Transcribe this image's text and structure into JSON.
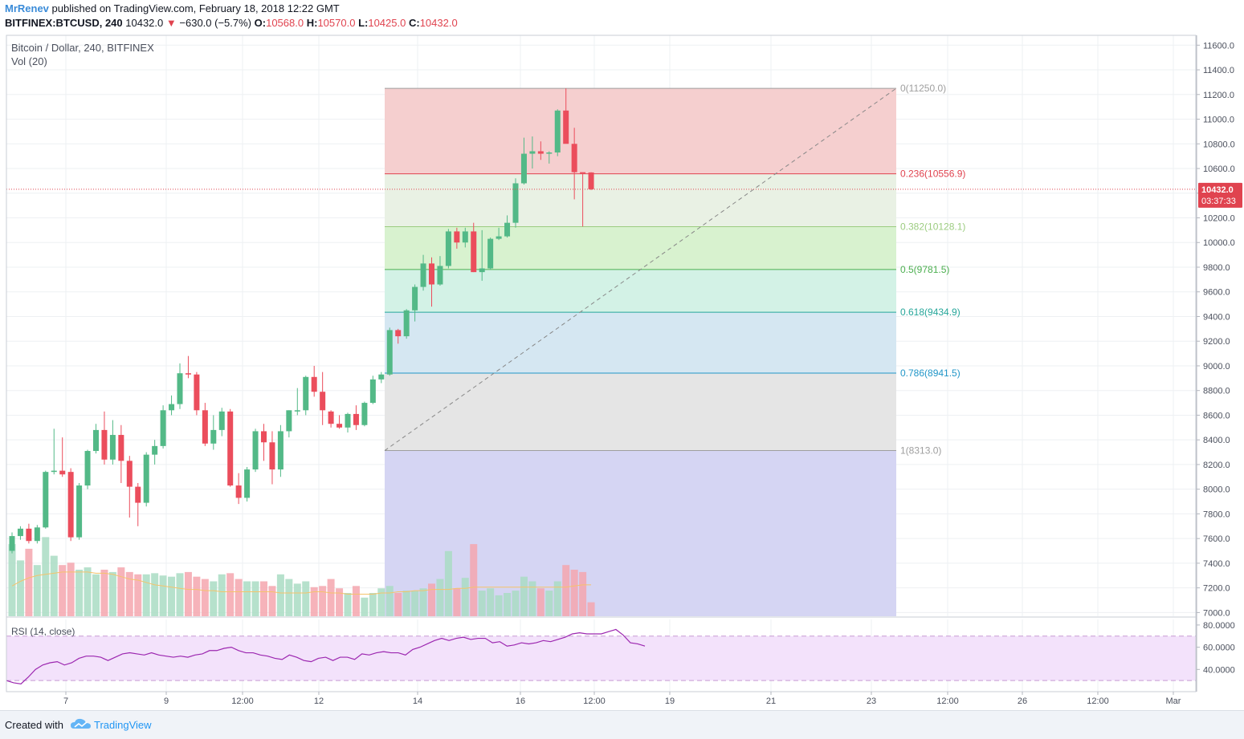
{
  "header": {
    "username": "MrRenev",
    "published_text": "published on TradingView.com, February 18, 2018 12:22 GMT",
    "symbol": "BITFINEX:BTCUSD, 240",
    "last": "10432.0",
    "change": "−630.0 (−5.7%)",
    "o_label": "O:",
    "o": "10568.0",
    "h_label": "H:",
    "h": "10570.0",
    "l_label": "L:",
    "l": "10425.0",
    "c_label": "C:",
    "c": "10432.0"
  },
  "pane_labels": {
    "main": "Bitcoin / Dollar, 240, BITFINEX",
    "volume": "Vol (20)",
    "rsi": "RSI (14, close)"
  },
  "footer": {
    "created_with": "Created with",
    "brand": "TradingView"
  },
  "colors": {
    "up": "#53b987",
    "down": "#eb4d5c",
    "vol_up": "#a9dcc3",
    "vol_down": "#f5a6ae",
    "ma": "#f5c36b",
    "rsi_line": "#9c27b0",
    "rsi_band": "#f3e2fb"
  },
  "chart_data": [
    {
      "type": "candlestick",
      "title": "Bitcoin / Dollar, 240, BITFINEX",
      "y_ticks": [
        7000.0,
        7200.0,
        7400.0,
        7600.0,
        7800.0,
        8000.0,
        8200.0,
        8400.0,
        8600.0,
        8800.0,
        9000.0,
        9200.0,
        9400.0,
        9600.0,
        9800.0,
        10000.0,
        10200.0,
        10400.0,
        10600.0,
        10800.0,
        11000.0,
        11200.0,
        11400.0,
        11600.0
      ],
      "ylim": [
        6970,
        11680
      ],
      "x_tick_labels": [
        "7",
        "9",
        "12:00",
        "12",
        "14",
        "16",
        "12:00",
        "19",
        "21",
        "23",
        "12:00",
        "26",
        "12:00",
        "Mar"
      ],
      "last_price": "10432.0",
      "countdown": "03:37:33",
      "candles": [
        [
          7500,
          7650,
          7480,
          7620
        ],
        [
          7620,
          7700,
          7590,
          7680
        ],
        [
          7680,
          7720,
          7560,
          7580
        ],
        [
          7580,
          7710,
          7560,
          7690
        ],
        [
          7690,
          8150,
          7680,
          8140
        ],
        [
          8140,
          8490,
          8120,
          8150
        ],
        [
          8150,
          8420,
          8100,
          8120
        ],
        [
          8140,
          8170,
          7580,
          7610
        ],
        [
          7610,
          8050,
          7590,
          8030
        ],
        [
          8030,
          8320,
          8000,
          8310
        ],
        [
          8310,
          8530,
          8290,
          8480
        ],
        [
          8480,
          8630,
          8200,
          8240
        ],
        [
          8240,
          8560,
          8200,
          8440
        ],
        [
          8440,
          8520,
          8050,
          8230
        ],
        [
          8230,
          8270,
          7770,
          8020
        ],
        [
          8020,
          8050,
          7700,
          7890
        ],
        [
          7890,
          8300,
          7860,
          8280
        ],
        [
          8280,
          8400,
          8200,
          8350
        ],
        [
          8350,
          8680,
          8330,
          8640
        ],
        [
          8640,
          8760,
          8600,
          8690
        ],
        [
          8690,
          9020,
          8650,
          8940
        ],
        [
          8940,
          9080,
          8900,
          8930
        ],
        [
          8930,
          8950,
          8600,
          8640
        ],
        [
          8640,
          8700,
          8350,
          8370
        ],
        [
          8370,
          8600,
          8320,
          8480
        ],
        [
          8480,
          8660,
          8430,
          8630
        ],
        [
          8630,
          8650,
          8020,
          8030
        ],
        [
          8030,
          8130,
          7880,
          7930
        ],
        [
          7930,
          8180,
          7900,
          8160
        ],
        [
          8160,
          8490,
          8140,
          8470
        ],
        [
          8470,
          8530,
          8230,
          8380
        ],
        [
          8380,
          8470,
          8040,
          8160
        ],
        [
          8160,
          8520,
          8100,
          8470
        ],
        [
          8470,
          8640,
          8420,
          8640
        ],
        [
          8640,
          8820,
          8600,
          8640
        ],
        [
          8640,
          8920,
          8600,
          8910
        ],
        [
          8910,
          9000,
          8750,
          8790
        ],
        [
          8790,
          8950,
          8520,
          8640
        ],
        [
          8630,
          8640,
          8500,
          8530
        ],
        [
          8530,
          8600,
          8490,
          8500
        ],
        [
          8500,
          8620,
          8460,
          8610
        ],
        [
          8610,
          8680,
          8480,
          8520
        ],
        [
          8520,
          8710,
          8510,
          8700
        ],
        [
          8700,
          8920,
          8690,
          8890
        ],
        [
          8890,
          8950,
          8860,
          8930
        ],
        [
          8930,
          9310,
          8920,
          9290
        ],
        [
          9290,
          9300,
          9180,
          9240
        ],
        [
          9240,
          9460,
          9220,
          9450
        ],
        [
          9450,
          9660,
          9360,
          9640
        ],
        [
          9640,
          9900,
          9610,
          9830
        ],
        [
          9830,
          9880,
          9480,
          9660
        ],
        [
          9660,
          9890,
          9650,
          9810
        ],
        [
          9810,
          10110,
          9790,
          10090
        ],
        [
          10090,
          10120,
          9950,
          10000
        ],
        [
          10000,
          10120,
          9960,
          10090
        ],
        [
          10090,
          10160,
          9760,
          9760
        ],
        [
          9760,
          10100,
          9690,
          9790
        ],
        [
          9790,
          10040,
          9780,
          10030
        ],
        [
          10030,
          10120,
          10020,
          10050
        ],
        [
          10050,
          10220,
          10040,
          10160
        ],
        [
          10160,
          10520,
          10120,
          10480
        ],
        [
          10480,
          10850,
          10470,
          10720
        ],
        [
          10720,
          10860,
          10600,
          10740
        ],
        [
          10740,
          10820,
          10670,
          10720
        ],
        [
          10720,
          10740,
          10640,
          10730
        ],
        [
          10730,
          11080,
          10700,
          11070
        ],
        [
          11070,
          11250,
          10820,
          10800
        ],
        [
          10800,
          10930,
          10350,
          10570
        ],
        [
          10570,
          10560,
          10130,
          10560
        ],
        [
          10568,
          10570,
          10425,
          10432
        ]
      ],
      "volume": [
        62,
        48,
        58,
        44,
        68,
        52,
        44,
        46,
        40,
        42,
        36,
        40,
        38,
        42,
        38,
        36,
        36,
        37,
        35,
        34,
        37,
        38,
        34,
        32,
        30,
        36,
        37,
        32,
        30,
        30,
        30,
        26,
        36,
        32,
        28,
        30,
        25,
        26,
        32,
        24,
        20,
        26,
        16,
        20,
        24,
        26,
        20,
        22,
        22,
        24,
        28,
        32,
        56,
        24,
        33,
        62,
        22,
        24,
        18,
        20,
        22,
        34,
        30,
        24,
        22,
        30,
        44,
        40,
        38,
        12
      ],
      "volume_ma": [
        26,
        30,
        33,
        35,
        36,
        37,
        38,
        38,
        38,
        38,
        37,
        37,
        36,
        34,
        32,
        31,
        29,
        27,
        26,
        25,
        24,
        23,
        23,
        22,
        22,
        21,
        21,
        21,
        21,
        21,
        21,
        21,
        20,
        20,
        20,
        20,
        21,
        21,
        20,
        20,
        19,
        19,
        19,
        19,
        20,
        20,
        21,
        21,
        22,
        22,
        23,
        23,
        23,
        24,
        24,
        25,
        25,
        25,
        25,
        25,
        25,
        25,
        25,
        25,
        25,
        25,
        25,
        26,
        27,
        27
      ],
      "fibonacci": {
        "low": 8313.0,
        "high": 11250.0,
        "levels": [
          {
            "ratio": 0,
            "price": 11250.0,
            "label": "0(11250.0)",
            "color": "#9e9e9e"
          },
          {
            "ratio": 0.236,
            "price": 10556.9,
            "label": "0.236(10556.9)",
            "color": "#e0434f"
          },
          {
            "ratio": 0.382,
            "price": 10128.1,
            "label": "0.382(10128.1)",
            "color": "#9ccc80"
          },
          {
            "ratio": 0.5,
            "price": 9781.5,
            "label": "0.5(9781.5)",
            "color": "#4caf50"
          },
          {
            "ratio": 0.618,
            "price": 9434.9,
            "label": "0.618(9434.9)",
            "color": "#26a69a"
          },
          {
            "ratio": 0.786,
            "price": 8941.5,
            "label": "0.786(8941.5)",
            "color": "#2196c8"
          },
          {
            "ratio": 1,
            "price": 8313.0,
            "label": "1(8313.0)",
            "color": "#9e9e9e"
          }
        ]
      }
    },
    {
      "type": "line",
      "title": "RSI (14, close)",
      "y_ticks": [
        40.0,
        60.0,
        80.0
      ],
      "y_tick_labels": [
        "40.0000",
        "60.0000",
        "80.0000"
      ],
      "ylim": [
        20,
        85
      ],
      "bands": [
        30,
        70
      ],
      "values": [
        30,
        28,
        27,
        33,
        40,
        44,
        46,
        47,
        44,
        46,
        50,
        52,
        52,
        51,
        48,
        51,
        54,
        55,
        54,
        53,
        55,
        53,
        52,
        51,
        52,
        51,
        53,
        54,
        57,
        57,
        59,
        60,
        57,
        55,
        55,
        53,
        52,
        50,
        49,
        53,
        51,
        48,
        47,
        50,
        51,
        48,
        51,
        51,
        49,
        54,
        53,
        55,
        56,
        55,
        55,
        53,
        58,
        60,
        63,
        66,
        68,
        66,
        68,
        69,
        67,
        68,
        68,
        64,
        65,
        61,
        62,
        64,
        63,
        64,
        66,
        65,
        67,
        69,
        72,
        73,
        72,
        72,
        72,
        74,
        76,
        71,
        64,
        63,
        61
      ]
    }
  ]
}
